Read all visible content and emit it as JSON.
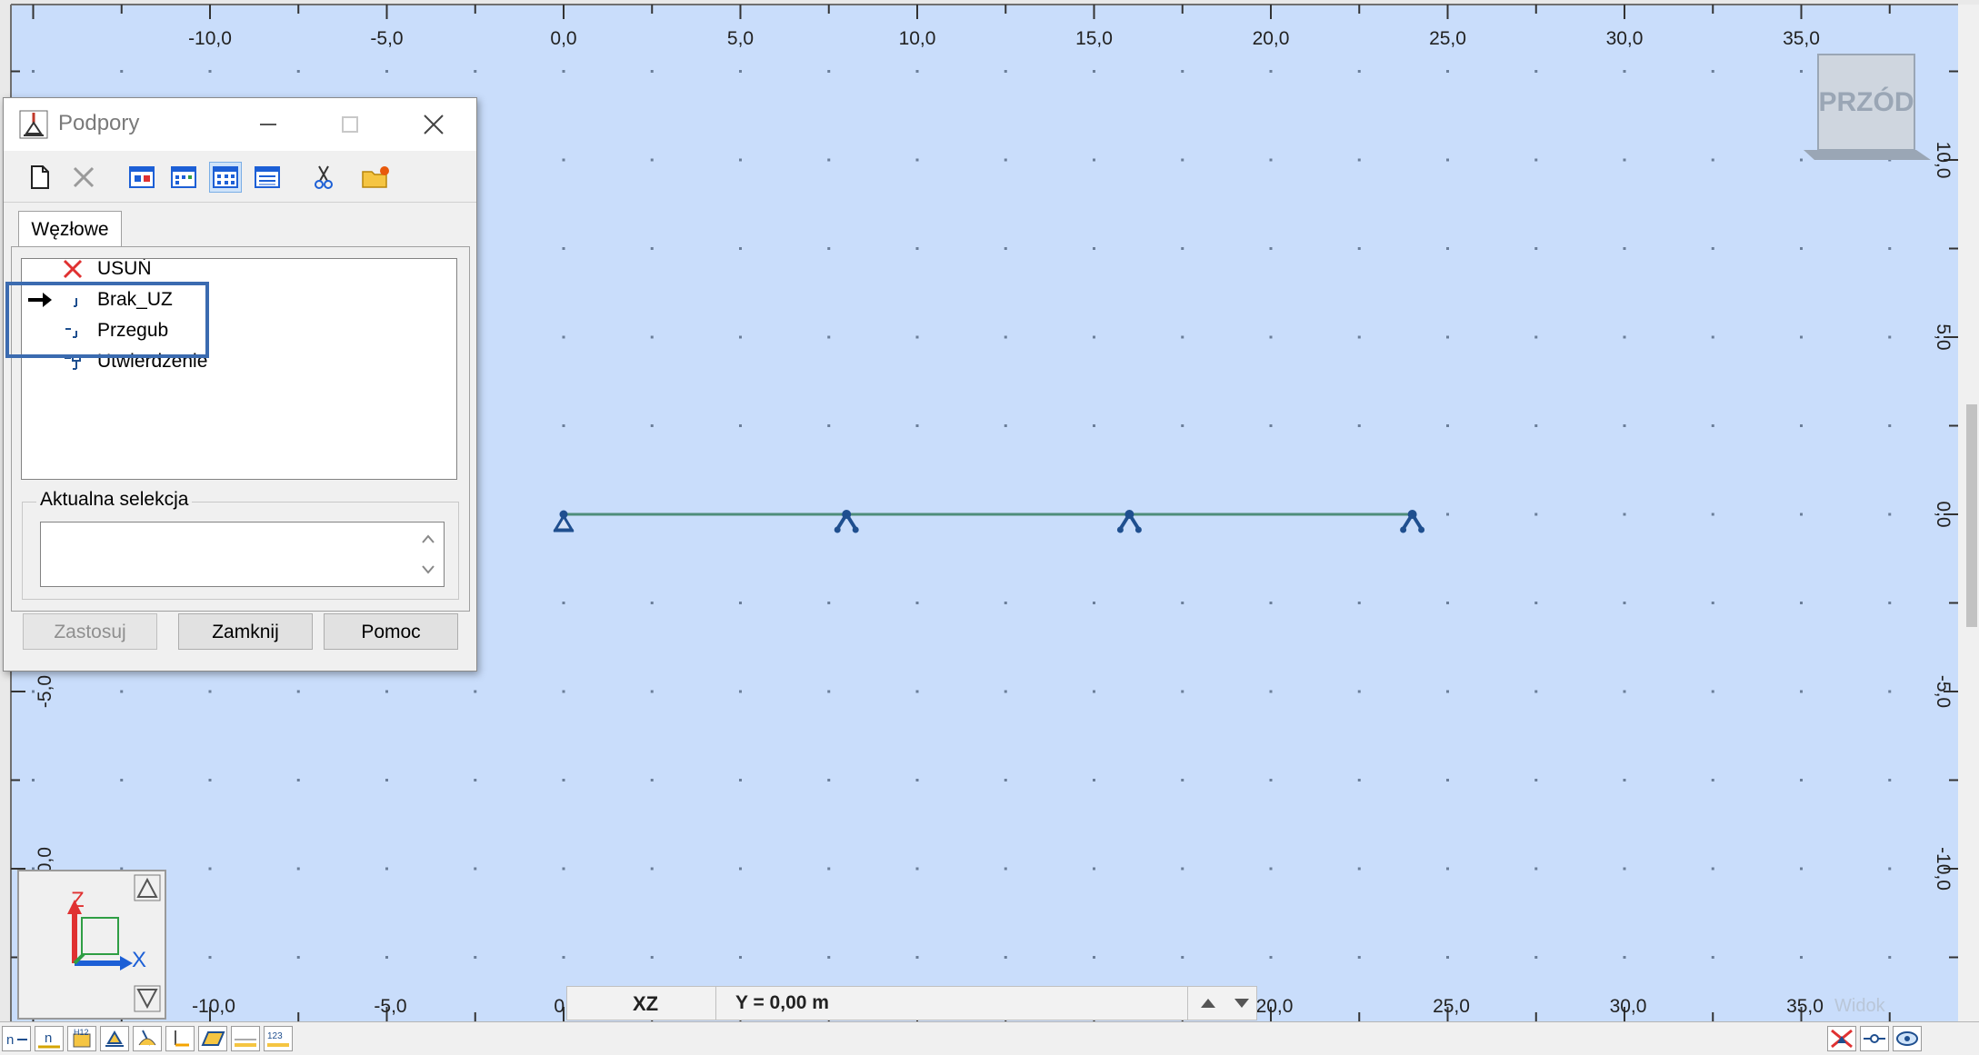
{
  "dialog": {
    "title": "Podpory",
    "tab_label": "Węzłowe",
    "items": [
      {
        "label": "USUŃ",
        "icon": "delete-x-icon"
      },
      {
        "label": "Brak_UZ",
        "icon": "support-none-icon",
        "current": true
      },
      {
        "label": "Przegub",
        "icon": "support-hinge-icon"
      },
      {
        "label": "Utwierdzenie",
        "icon": "support-fixed-icon"
      }
    ],
    "selection_group_label": "Aktualna selekcja",
    "selection_value": "",
    "buttons": {
      "apply": "Zastosuj",
      "close": "Zamknij",
      "help": "Pomoc"
    }
  },
  "viewport": {
    "x_ticks": [
      "-10,0",
      "-5,0",
      "0,0",
      "5,0",
      "10,0",
      "15,0",
      "20,0",
      "25,0",
      "30,0",
      "35,0"
    ],
    "x_ticks_bottom": [
      "-10,0",
      "-5,0",
      "0,0",
      "20,0",
      "25,0",
      "30,0",
      "35,0"
    ],
    "z_ticks": [
      "10,0",
      "5,0",
      "0,0",
      "-5,0",
      "-10,0"
    ],
    "z_ticks_left": [
      "-5,0",
      "-10,0"
    ],
    "view_cube_label": "PRZÓD",
    "axis_labels": {
      "vertical": "Z",
      "horizontal": "X"
    },
    "beam": {
      "x_start": 0,
      "x_end": 24,
      "z": 0
    },
    "supports_x": [
      0,
      8,
      16,
      24
    ],
    "view_label": "Widok",
    "background_color": "#c9ddfb",
    "beam_color": "#4e8d7a",
    "support_color": "#1f4f8f"
  },
  "view_bar": {
    "plane": "XZ",
    "coordinate": "Y = 0,00 m"
  },
  "bottom_toolbar": {
    "icons": [
      "node-numbers-icon",
      "element-numbers-icon",
      "section-label-icon",
      "supports-display-icon",
      "loads-display-icon",
      "local-axes-icon",
      "panels-icon",
      "dimensions-icon",
      "values-123-icon"
    ],
    "right_icons": [
      "hide-supports-icon",
      "releases-icon",
      "view-display-icon"
    ]
  }
}
